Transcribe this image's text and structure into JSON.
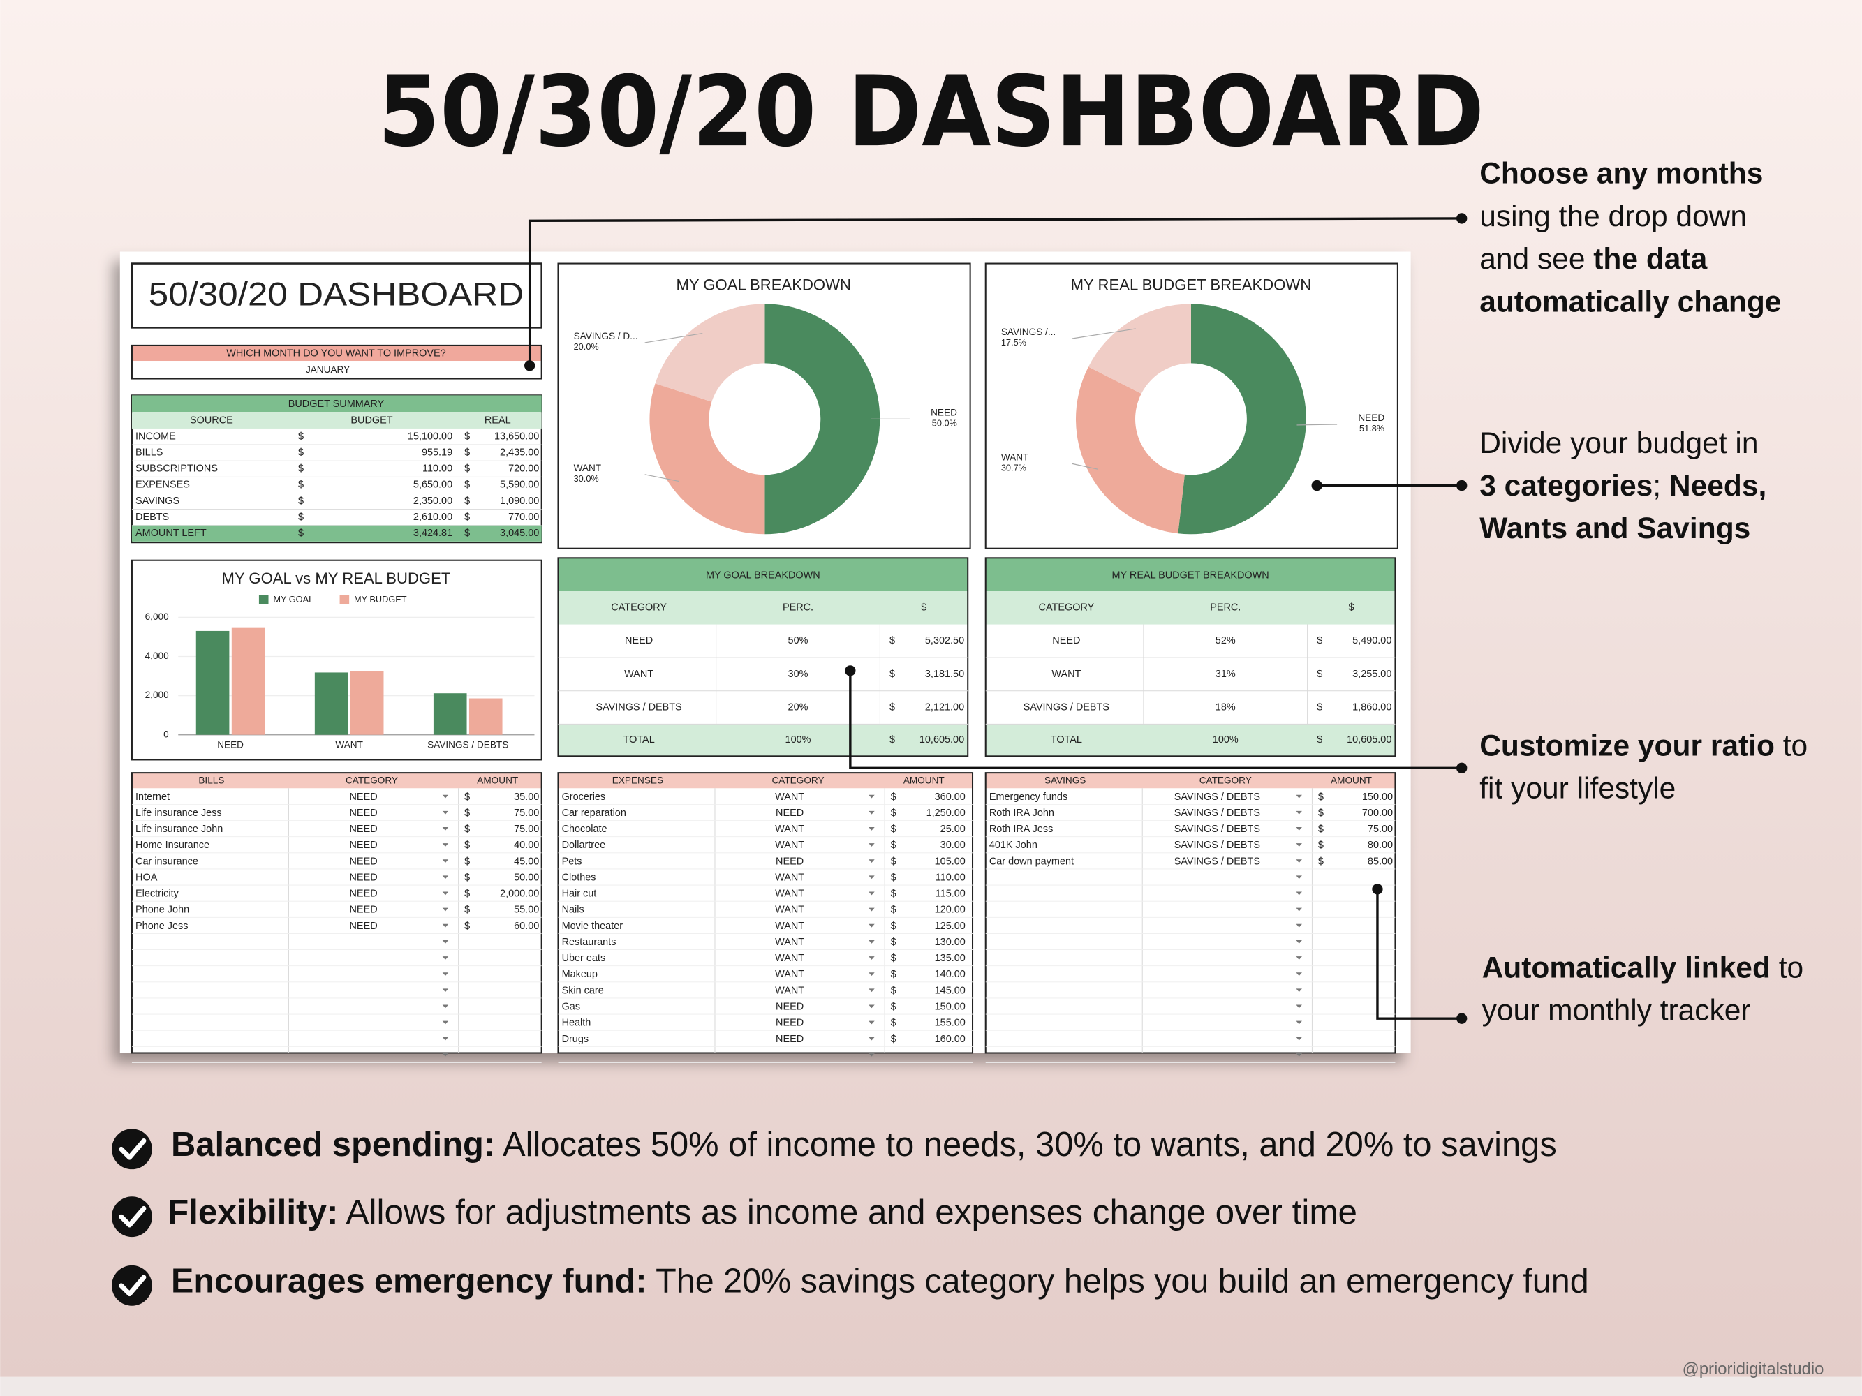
{
  "title": "50/30/20 DASHBOARD",
  "callouts": [
    {
      "lines": [
        [
          {
            "text": "Choose any months",
            "bold": true
          }
        ],
        [
          {
            "text": "using the drop down",
            "bold": false
          }
        ],
        [
          {
            "text": "and see ",
            "bold": false
          },
          {
            "text": "the data",
            "bold": true
          }
        ],
        [
          {
            "text": "automatically change",
            "bold": true
          }
        ]
      ]
    },
    {
      "lines": [
        [
          {
            "text": "Divide your budget in",
            "bold": false
          }
        ],
        [
          {
            "text": "3 categories",
            "bold": true
          },
          {
            "text": "; ",
            "bold": false
          },
          {
            "text": "Needs,",
            "bold": true
          }
        ],
        [
          {
            "text": "Wants and Savings",
            "bold": true
          }
        ]
      ]
    },
    {
      "lines": [
        [
          {
            "text": "Customize your ratio",
            "bold": true
          },
          {
            "text": " to",
            "bold": false
          }
        ],
        [
          {
            "text": "fit your lifestyle",
            "bold": false
          }
        ]
      ]
    },
    {
      "lines": [
        [
          {
            "text": "Automatically linked",
            "bold": true
          },
          {
            "text": " to",
            "bold": false
          }
        ],
        [
          {
            "text": "your monthly tracker",
            "bold": false
          }
        ]
      ]
    }
  ],
  "features": [
    {
      "lead": "Balanced spending:",
      "text": " Allocates 50% of income to needs, 30% to wants, and 20% to savings"
    },
    {
      "lead": "Flexibility:",
      "text": " Allows for adjustments as income and expenses change over time"
    },
    {
      "lead": "Encourages emergency fund:",
      "text": " The 20% savings category helps you build an emergency fund"
    }
  ],
  "credit": "@prioridigitalstudio",
  "sheet": {
    "title": "50/30/20 DASHBOARD",
    "month_prompt": "WHICH MONTH DO YOU WANT TO IMPROVE?",
    "month": "JANUARY",
    "budget_summary": {
      "title": "BUDGET SUMMARY",
      "headers": [
        "SOURCE",
        "BUDGET",
        "REAL"
      ],
      "currency": "$",
      "rows": [
        [
          "INCOME",
          "15,100.00",
          "13,650.00"
        ],
        [
          "BILLS",
          "955.19",
          "2,435.00"
        ],
        [
          "SUBSCRIPTIONS",
          "110.00",
          "720.00"
        ],
        [
          "EXPENSES",
          "5,650.00",
          "5,590.00"
        ],
        [
          "SAVINGS",
          "2,350.00",
          "1,090.00"
        ],
        [
          "DEBTS",
          "2,610.00",
          "770.00"
        ],
        [
          "AMOUNT LEFT",
          "3,424.81",
          "3,045.00"
        ]
      ]
    },
    "goal_donut": {
      "type": "pie",
      "title": "MY GOAL BREAKDOWN",
      "categories": [
        "NEED",
        "WANT",
        "SAVINGS / D..."
      ],
      "values": [
        50,
        30,
        20
      ],
      "value_labels": [
        "50.0%",
        "30.0%",
        "20.0%"
      ],
      "colors": [
        "#4a8a5e",
        "#eeaa9a",
        "#f0cdc6"
      ]
    },
    "real_donut": {
      "type": "pie",
      "title": "MY REAL BUDGET BREAKDOWN",
      "categories": [
        "NEED",
        "WANT",
        "SAVINGS /..."
      ],
      "values": [
        51.8,
        30.7,
        17.5
      ],
      "value_labels": [
        "51.8%",
        "30.7%",
        "17.5%"
      ],
      "colors": [
        "#4a8a5e",
        "#eeaa9a",
        "#f0cdc6"
      ]
    },
    "goal_vs_real": {
      "type": "bar",
      "title": "MY GOAL vs MY REAL BUDGET",
      "categories": [
        "NEED",
        "WANT",
        "SAVINGS / DEBTS"
      ],
      "series": [
        {
          "name": "MY GOAL",
          "color": "#4a8a5e",
          "values": [
            5302.5,
            3181.5,
            2121
          ]
        },
        {
          "name": "MY BUDGET",
          "color": "#eeaa9a",
          "values": [
            5490,
            3255,
            1860
          ]
        }
      ],
      "ylim": [
        0,
        6000
      ],
      "yticks": [
        0,
        {
          "value": 2000,
          "label": "2,000"
        },
        {
          "value": 4000,
          "label": "4,000"
        },
        {
          "value": 6000,
          "label": "6,000"
        }
      ]
    },
    "goal_table": {
      "title": "MY GOAL BREAKDOWN",
      "headers": [
        "CATEGORY",
        "PERC.",
        "$"
      ],
      "currency": "$",
      "rows": [
        [
          "NEED",
          "50%",
          "5,302.50"
        ],
        [
          "WANT",
          "30%",
          "3,181.50"
        ],
        [
          "SAVINGS / DEBTS",
          "20%",
          "2,121.00"
        ],
        [
          "TOTAL",
          "100%",
          "10,605.00"
        ]
      ]
    },
    "real_table": {
      "title": "MY REAL BUDGET BREAKDOWN",
      "headers": [
        "CATEGORY",
        "PERC.",
        "$"
      ],
      "currency": "$",
      "rows": [
        [
          "NEED",
          "52%",
          "5,490.00"
        ],
        [
          "WANT",
          "31%",
          "3,255.00"
        ],
        [
          "SAVINGS / DEBTS",
          "18%",
          "1,860.00"
        ],
        [
          "TOTAL",
          "100%",
          "10,605.00"
        ]
      ]
    },
    "bills": {
      "headers": [
        "BILLS",
        "CATEGORY",
        "AMOUNT"
      ],
      "currency": "$",
      "rows": [
        [
          "Internet",
          "NEED",
          "35.00"
        ],
        [
          "Life insurance Jess",
          "NEED",
          "75.00"
        ],
        [
          "Life insurance John",
          "NEED",
          "75.00"
        ],
        [
          "Home Insurance",
          "NEED",
          "40.00"
        ],
        [
          "Car insurance",
          "NEED",
          "45.00"
        ],
        [
          "HOA",
          "NEED",
          "50.00"
        ],
        [
          "Electricity",
          "NEED",
          "2,000.00"
        ],
        [
          "Phone John",
          "NEED",
          "55.00"
        ],
        [
          "Phone Jess",
          "NEED",
          "60.00"
        ]
      ]
    },
    "expenses": {
      "headers": [
        "EXPENSES",
        "CATEGORY",
        "AMOUNT"
      ],
      "currency": "$",
      "rows": [
        [
          "Groceries",
          "WANT",
          "360.00"
        ],
        [
          "Car reparation",
          "NEED",
          "1,250.00"
        ],
        [
          "Chocolate",
          "WANT",
          "25.00"
        ],
        [
          "Dollartree",
          "WANT",
          "30.00"
        ],
        [
          "Pets",
          "NEED",
          "105.00"
        ],
        [
          "Clothes",
          "WANT",
          "110.00"
        ],
        [
          "Hair cut",
          "WANT",
          "115.00"
        ],
        [
          "Nails",
          "WANT",
          "120.00"
        ],
        [
          "Movie theater",
          "WANT",
          "125.00"
        ],
        [
          "Restaurants",
          "WANT",
          "130.00"
        ],
        [
          "Uber eats",
          "WANT",
          "135.00"
        ],
        [
          "Makeup",
          "WANT",
          "140.00"
        ],
        [
          "Skin care",
          "WANT",
          "145.00"
        ],
        [
          "Gas",
          "NEED",
          "150.00"
        ],
        [
          "Health",
          "NEED",
          "155.00"
        ],
        [
          "Drugs",
          "NEED",
          "160.00"
        ]
      ]
    },
    "savings": {
      "headers": [
        "SAVINGS",
        "CATEGORY",
        "AMOUNT"
      ],
      "currency": "$",
      "rows": [
        [
          "Emergency funds",
          "SAVINGS / DEBTS",
          "150.00"
        ],
        [
          "Roth IRA John",
          "SAVINGS / DEBTS",
          "700.00"
        ],
        [
          "Roth IRA Jess",
          "SAVINGS / DEBTS",
          "75.00"
        ],
        [
          "401K John",
          "SAVINGS / DEBTS",
          "80.00"
        ],
        [
          "Car down payment",
          "SAVINGS / DEBTS",
          "85.00"
        ]
      ]
    }
  }
}
